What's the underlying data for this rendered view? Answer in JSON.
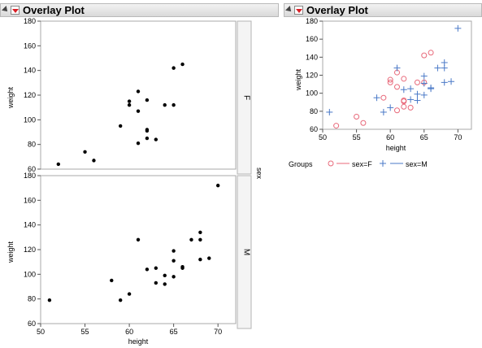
{
  "left_report": {
    "title": "Overlay Plot",
    "group_label": "sex",
    "xlabel": "height",
    "ylabel": "weight"
  },
  "right_report": {
    "title": "Overlay Plot",
    "xlabel": "height",
    "ylabel": "weight",
    "legend_title": "Groups",
    "legend_items": [
      "sex=F",
      "sex=M"
    ]
  },
  "colors": {
    "female": "#e8697a",
    "male": "#4a79c7",
    "marker": "#000000"
  },
  "chart_data": [
    {
      "type": "scatter",
      "panel": "F",
      "xlim": [
        50,
        72
      ],
      "ylim": [
        60,
        180
      ],
      "xticks": [
        50,
        55,
        60,
        65,
        70
      ],
      "yticks": [
        60,
        80,
        100,
        120,
        140,
        160,
        180
      ],
      "points": [
        [
          52,
          64
        ],
        [
          55,
          74
        ],
        [
          56,
          67
        ],
        [
          59,
          95
        ],
        [
          60,
          115
        ],
        [
          60,
          112
        ],
        [
          61,
          123
        ],
        [
          61,
          107
        ],
        [
          61,
          81
        ],
        [
          62,
          116
        ],
        [
          62,
          92
        ],
        [
          62,
          91
        ],
        [
          62,
          85
        ],
        [
          63,
          84
        ],
        [
          64,
          112
        ],
        [
          65,
          112
        ],
        [
          65,
          142
        ],
        [
          66,
          145
        ]
      ]
    },
    {
      "type": "scatter",
      "panel": "M",
      "xlim": [
        50,
        72
      ],
      "ylim": [
        60,
        180
      ],
      "xticks": [
        50,
        55,
        60,
        65,
        70
      ],
      "yticks": [
        60,
        80,
        100,
        120,
        140,
        160,
        180
      ],
      "points": [
        [
          51,
          79
        ],
        [
          58,
          95
        ],
        [
          59,
          79
        ],
        [
          60,
          84
        ],
        [
          61,
          128
        ],
        [
          62,
          104
        ],
        [
          63,
          105
        ],
        [
          63,
          93
        ],
        [
          64,
          99
        ],
        [
          64,
          92
        ],
        [
          65,
          119
        ],
        [
          65,
          111
        ],
        [
          65,
          98
        ],
        [
          66,
          106
        ],
        [
          66,
          105
        ],
        [
          67,
          128
        ],
        [
          68,
          134
        ],
        [
          68,
          128
        ],
        [
          68,
          112
        ],
        [
          69,
          113
        ],
        [
          70,
          172
        ]
      ]
    },
    {
      "type": "scatter",
      "panel": "overlay",
      "xlim": [
        50,
        72
      ],
      "ylim": [
        60,
        180
      ],
      "xticks": [
        50,
        55,
        60,
        65,
        70
      ],
      "yticks": [
        60,
        80,
        100,
        120,
        140,
        160,
        180
      ],
      "legend": "bottom",
      "series": [
        {
          "name": "sex=F",
          "marker": "circle",
          "points": [
            [
              52,
              64
            ],
            [
              55,
              74
            ],
            [
              56,
              67
            ],
            [
              59,
              95
            ],
            [
              60,
              115
            ],
            [
              60,
              112
            ],
            [
              61,
              123
            ],
            [
              61,
              107
            ],
            [
              61,
              81
            ],
            [
              62,
              116
            ],
            [
              62,
              92
            ],
            [
              62,
              91
            ],
            [
              62,
              85
            ],
            [
              63,
              84
            ],
            [
              64,
              112
            ],
            [
              65,
              112
            ],
            [
              65,
              142
            ],
            [
              66,
              145
            ]
          ]
        },
        {
          "name": "sex=M",
          "marker": "plus",
          "points": [
            [
              51,
              79
            ],
            [
              58,
              95
            ],
            [
              59,
              79
            ],
            [
              60,
              84
            ],
            [
              61,
              128
            ],
            [
              62,
              104
            ],
            [
              63,
              105
            ],
            [
              63,
              93
            ],
            [
              64,
              99
            ],
            [
              64,
              92
            ],
            [
              65,
              119
            ],
            [
              65,
              111
            ],
            [
              65,
              98
            ],
            [
              66,
              106
            ],
            [
              66,
              105
            ],
            [
              67,
              128
            ],
            [
              68,
              134
            ],
            [
              68,
              128
            ],
            [
              68,
              112
            ],
            [
              69,
              113
            ],
            [
              70,
              172
            ]
          ]
        }
      ]
    }
  ]
}
